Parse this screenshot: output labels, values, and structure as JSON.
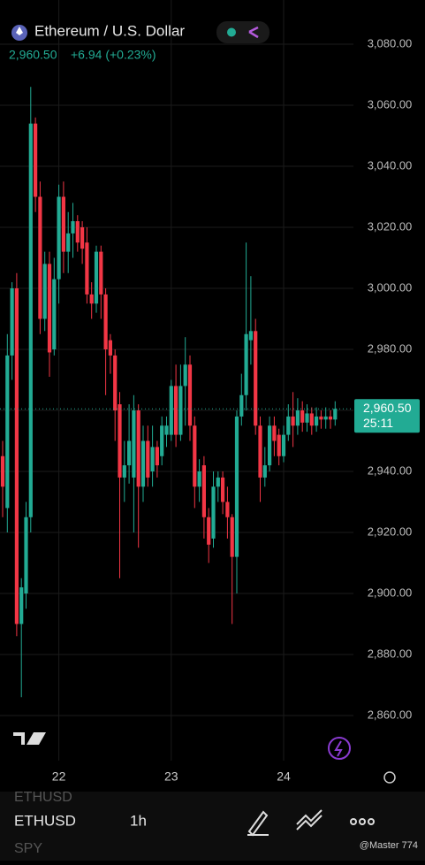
{
  "chart_data": {
    "type": "candlestick",
    "title": "Ethereum / U.S. Dollar",
    "price": "2,960.50",
    "change": "+6.94 (+0.23%)",
    "last_price": {
      "value": 2960.5,
      "label": "2,960.50"
    },
    "countdown": "25:11",
    "up_color": "#22ab94",
    "down_color": "#f23645",
    "grid": true,
    "categories": [
      null,
      null,
      null,
      null,
      null,
      null,
      null,
      null,
      null,
      null,
      null,
      null,
      "22",
      null,
      null,
      null,
      null,
      null,
      null,
      null,
      null,
      null,
      null,
      null,
      null,
      null,
      null,
      null,
      null,
      null,
      null,
      null,
      null,
      null,
      null,
      null,
      "23",
      null,
      null,
      null,
      null,
      null,
      null,
      null,
      null,
      null,
      null,
      null,
      null,
      null,
      null,
      null,
      null,
      null,
      null,
      null,
      null,
      null,
      null,
      null,
      "24",
      null,
      null,
      null,
      null,
      null,
      null,
      null,
      null,
      null,
      null,
      null
    ],
    "open": [
      2945,
      2928,
      2978,
      3000,
      2890,
      2900,
      2925,
      3054,
      3030,
      2990,
      3008,
      2980,
      3003,
      3030,
      3012,
      3018,
      3022,
      3020,
      3015,
      2998,
      2995,
      3012,
      2998,
      2983,
      2978,
      2962,
      2938,
      2942,
      2938,
      2960,
      2935,
      2950,
      2940,
      2948,
      2945,
      2952,
      2952,
      2968,
      2952,
      2968,
      2975,
      2955,
      2935,
      2942,
      2925,
      2918,
      2935,
      2938,
      2930,
      2925,
      2912,
      2958,
      2965,
      2983,
      2986,
      2955,
      2938,
      2942,
      2955,
      2952,
      2945,
      2952,
      2958,
      2955,
      2960,
      2956,
      2959,
      2955,
      2958,
      2957,
      2958,
      2957
    ],
    "high": [
      2950,
      2985,
      3002,
      3005,
      2905,
      2930,
      3066,
      3056,
      3035,
      3012,
      3012,
      3010,
      3034,
      3035,
      3025,
      3028,
      3024,
      3022,
      3020,
      3002,
      3014,
      3014,
      3000,
      2985,
      2980,
      2966,
      2950,
      2962,
      2965,
      2962,
      2955,
      2955,
      2955,
      2950,
      2958,
      2958,
      2970,
      2975,
      2975,
      2984,
      2978,
      2958,
      2944,
      2945,
      2928,
      2940,
      2940,
      2940,
      2935,
      2926,
      2960,
      2972,
      3015,
      3004,
      2990,
      2958,
      2948,
      2958,
      2958,
      2954,
      2955,
      2962,
      2966,
      2964,
      2963,
      2962,
      2961,
      2961,
      2960,
      2961,
      2960,
      2963
    ],
    "low": [
      2925,
      2920,
      2970,
      2886,
      2866,
      2895,
      2920,
      3025,
      2985,
      2986,
      2971,
      2978,
      2995,
      3005,
      3005,
      3010,
      3012,
      3008,
      2995,
      2990,
      2992,
      2990,
      2965,
      2972,
      2950,
      2905,
      2930,
      2936,
      2920,
      2915,
      2930,
      2935,
      2935,
      2938,
      2942,
      2948,
      2950,
      2948,
      2950,
      2955,
      2950,
      2928,
      2930,
      2918,
      2910,
      2915,
      2930,
      2926,
      2918,
      2890,
      2900,
      2955,
      2960,
      2975,
      2952,
      2930,
      2935,
      2940,
      2945,
      2942,
      2943,
      2950,
      2948,
      2952,
      2953,
      2953,
      2952,
      2953,
      2954,
      2954,
      2954,
      2955
    ],
    "close": [
      2935,
      2978,
      3000,
      2890,
      2902,
      2925,
      3054,
      3030,
      2990,
      3008,
      2979,
      3003,
      3030,
      3012,
      3018,
      3022,
      3015,
      3013,
      2998,
      2995,
      3012,
      2998,
      2980,
      2978,
      2960,
      2938,
      2942,
      2950,
      2960,
      2935,
      2950,
      2938,
      2948,
      2942,
      2955,
      2955,
      2968,
      2952,
      2968,
      2975,
      2955,
      2935,
      2940,
      2925,
      2916,
      2935,
      2938,
      2930,
      2925,
      2912,
      2958,
      2965,
      2985,
      2986,
      2955,
      2938,
      2942,
      2955,
      2950,
      2945,
      2952,
      2958,
      2955,
      2960,
      2956,
      2959,
      2955,
      2958,
      2957,
      2958,
      2957,
      2960.5
    ],
    "ylim": [
      2860,
      3080
    ],
    "yticks": [
      {
        "value": 3080,
        "label": "3,080.00"
      },
      {
        "value": 3060,
        "label": "3,060.00"
      },
      {
        "value": 3040,
        "label": "3,040.00"
      },
      {
        "value": 3020,
        "label": "3,020.00"
      },
      {
        "value": 3000,
        "label": "3,000.00"
      },
      {
        "value": 2980,
        "label": "2,980.00"
      },
      {
        "value": 2960,
        "label": "2,960.00"
      },
      {
        "value": 2940,
        "label": "2,940.00"
      },
      {
        "value": 2920,
        "label": "2,920.00"
      },
      {
        "value": 2900,
        "label": "2,900.00"
      },
      {
        "value": 2880,
        "label": "2,880.00"
      },
      {
        "value": 2860,
        "label": "2,860.00"
      }
    ]
  },
  "toolbar": {
    "symbol_above": "ETHUSD",
    "symbol": "ETHUSD",
    "interval": "1h",
    "symbol_below": "SPY",
    "watermark": "@Master 774"
  }
}
